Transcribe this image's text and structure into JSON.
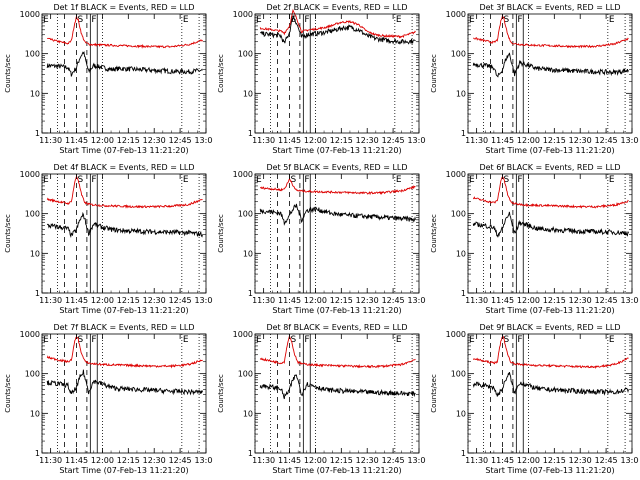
{
  "colors": {
    "events": "#000000",
    "lld": "#dd0000",
    "axes": "#000000"
  },
  "chart_data": {
    "type": "line",
    "layout": "3x3 grid",
    "ylabel": "Counts/sec",
    "yscale": "log",
    "ylim": [
      1,
      1000
    ],
    "ytick_labels": [
      "1",
      "10",
      "100",
      "1000"
    ],
    "xlim_minutes": [
      685,
      780
    ],
    "xticks": [
      {
        "label": "11:30",
        "minute": 690
      },
      {
        "label": "11:45",
        "minute": 705
      },
      {
        "label": "12:00",
        "minute": 720
      },
      {
        "label": "12:15",
        "minute": 735
      },
      {
        "label": "12:30",
        "minute": 750
      },
      {
        "label": "12:45",
        "minute": 765
      },
      {
        "label": "13:00",
        "minute": 780
      }
    ],
    "xlabel": "Start Time (07-Feb-13 11:21:20)",
    "markers": [
      {
        "label": "E",
        "minute": 685,
        "style": "dotted"
      },
      {
        "label": "",
        "minute": 694,
        "style": "dotted"
      },
      {
        "label": "",
        "minute": 698,
        "style": "dashed"
      },
      {
        "label": "S",
        "minute": 705,
        "style": "dashed"
      },
      {
        "label": "",
        "minute": 711,
        "style": "dashed"
      },
      {
        "label": "F",
        "minute": 713,
        "style": "solid"
      },
      {
        "label": "",
        "minute": 717,
        "style": "solid"
      },
      {
        "label": "",
        "minute": 720,
        "style": "dotted"
      },
      {
        "label": "E",
        "minute": 766,
        "style": "dotted"
      },
      {
        "label": "",
        "minute": 776,
        "style": "dotted"
      }
    ],
    "panels": [
      {
        "title": "Det 1f BLACK = Events, RED = LLD",
        "series": [
          {
            "name": "Events",
            "color": "#000000",
            "x": [
              688,
              695,
              700,
              702,
              705,
              707,
              709,
              712,
              715,
              720,
              725,
              730,
              740,
              750,
              760,
              770,
              778
            ],
            "y": [
              50,
              48,
              45,
              30,
              45,
              80,
              110,
              35,
              50,
              45,
              40,
              42,
              40,
              38,
              36,
              35,
              38
            ]
          },
          {
            "name": "LLD",
            "color": "#dd0000",
            "x": [
              688,
              695,
              700,
              702,
              704,
              705,
              706,
              708,
              710,
              713,
              720,
              730,
              740,
              750,
              760,
              770,
              778
            ],
            "y": [
              240,
              200,
              180,
              210,
              600,
              850,
              700,
              300,
              190,
              170,
              165,
              160,
              155,
              150,
              150,
              170,
              220
            ]
          }
        ]
      },
      {
        "title": "Det 2f BLACK = Events, RED = LLD",
        "series": [
          {
            "name": "Events",
            "color": "#000000",
            "x": [
              688,
              695,
              700,
              702,
              705,
              707,
              709,
              712,
              715,
              720,
              725,
              730,
              735,
              740,
              745,
              750,
              755,
              760,
              770,
              778
            ],
            "y": [
              320,
              300,
              280,
              180,
              350,
              900,
              600,
              260,
              300,
              320,
              340,
              380,
              440,
              460,
              400,
              280,
              240,
              220,
              200,
              210
            ]
          },
          {
            "name": "LLD",
            "color": "#dd0000",
            "x": [
              688,
              695,
              700,
              702,
              705,
              707,
              709,
              712,
              715,
              720,
              725,
              730,
              735,
              740,
              745,
              750,
              755,
              760,
              770,
              778
            ],
            "y": [
              440,
              400,
              370,
              330,
              500,
              1200,
              800,
              360,
              390,
              420,
              450,
              520,
              620,
              640,
              540,
              360,
              300,
              280,
              270,
              350
            ]
          }
        ]
      },
      {
        "title": "Det 3f BLACK = Events, RED = LLD",
        "series": [
          {
            "name": "Events",
            "color": "#000000",
            "x": [
              688,
              695,
              700,
              702,
              705,
              707,
              709,
              712,
              715,
              720,
              725,
              730,
              740,
              750,
              760,
              770,
              778
            ],
            "y": [
              55,
              50,
              45,
              25,
              40,
              75,
              100,
              30,
              60,
              50,
              42,
              40,
              38,
              36,
              35,
              34,
              38
            ]
          },
          {
            "name": "LLD",
            "color": "#dd0000",
            "x": [
              688,
              695,
              700,
              702,
              704,
              705,
              706,
              708,
              710,
              713,
              720,
              730,
              740,
              750,
              760,
              770,
              778
            ],
            "y": [
              250,
              210,
              190,
              220,
              650,
              900,
              720,
              300,
              190,
              175,
              165,
              160,
              155,
              150,
              155,
              175,
              240
            ]
          }
        ]
      },
      {
        "title": "Det 4f BLACK = Events, RED = LLD",
        "series": [
          {
            "name": "Events",
            "color": "#000000",
            "x": [
              688,
              695,
              700,
              702,
              705,
              707,
              709,
              712,
              715,
              720,
              725,
              730,
              740,
              750,
              760,
              770,
              778
            ],
            "y": [
              50,
              46,
              42,
              28,
              40,
              70,
              95,
              32,
              55,
              45,
              40,
              38,
              36,
              35,
              34,
              33,
              30
            ]
          },
          {
            "name": "LLD",
            "color": "#dd0000",
            "x": [
              688,
              695,
              700,
              702,
              704,
              705,
              706,
              708,
              710,
              713,
              720,
              730,
              740,
              750,
              760,
              770,
              778
            ],
            "y": [
              230,
              200,
              180,
              200,
              620,
              880,
              700,
              290,
              185,
              170,
              160,
              155,
              150,
              150,
              155,
              170,
              230
            ]
          }
        ]
      },
      {
        "title": "Det 5f BLACK = Events, RED = LLD",
        "series": [
          {
            "name": "Events",
            "color": "#000000",
            "x": [
              688,
              695,
              700,
              702,
              705,
              707,
              709,
              712,
              715,
              720,
              725,
              730,
              740,
              750,
              760,
              770,
              778
            ],
            "y": [
              120,
              110,
              100,
              60,
              90,
              130,
              160,
              70,
              120,
              130,
              115,
              100,
              90,
              85,
              80,
              75,
              70
            ]
          },
          {
            "name": "LLD",
            "color": "#dd0000",
            "x": [
              688,
              695,
              700,
              702,
              704,
              705,
              706,
              708,
              710,
              713,
              720,
              730,
              740,
              750,
              760,
              770,
              778
            ],
            "y": [
              450,
              420,
              400,
              420,
              600,
              750,
              650,
              420,
              380,
              370,
              360,
              350,
              340,
              330,
              340,
              380,
              480
            ]
          }
        ]
      },
      {
        "title": "Det 6f BLACK = Events, RED = LLD",
        "series": [
          {
            "name": "Events",
            "color": "#000000",
            "x": [
              688,
              695,
              700,
              702,
              705,
              707,
              709,
              712,
              715,
              720,
              725,
              730,
              740,
              750,
              760,
              770,
              778
            ],
            "y": [
              55,
              50,
              45,
              28,
              42,
              75,
              100,
              32,
              60,
              50,
              42,
              40,
              38,
              36,
              35,
              34,
              32
            ]
          },
          {
            "name": "LLD",
            "color": "#dd0000",
            "x": [
              688,
              695,
              700,
              702,
              704,
              705,
              706,
              708,
              710,
              713,
              720,
              730,
              740,
              750,
              760,
              770,
              778
            ],
            "y": [
              250,
              210,
              190,
              210,
              650,
              900,
              700,
              300,
              190,
              175,
              165,
              160,
              155,
              150,
              150,
              165,
              210
            ]
          }
        ]
      },
      {
        "title": "Det 7f BLACK = Events, RED = LLD",
        "series": [
          {
            "name": "Events",
            "color": "#000000",
            "x": [
              688,
              695,
              700,
              702,
              705,
              707,
              709,
              712,
              715,
              720,
              725,
              730,
              740,
              750,
              760,
              770,
              778
            ],
            "y": [
              60,
              55,
              50,
              30,
              45,
              80,
              110,
              35,
              65,
              55,
              45,
              42,
              40,
              38,
              36,
              35,
              34
            ]
          },
          {
            "name": "LLD",
            "color": "#dd0000",
            "x": [
              688,
              695,
              700,
              702,
              704,
              705,
              706,
              708,
              710,
              713,
              720,
              730,
              740,
              750,
              760,
              770,
              778
            ],
            "y": [
              260,
              220,
              200,
              220,
              650,
              900,
              720,
              310,
              200,
              180,
              170,
              165,
              160,
              155,
              155,
              170,
              220
            ]
          }
        ]
      },
      {
        "title": "Det 8f BLACK = Events, RED = LLD",
        "series": [
          {
            "name": "Events",
            "color": "#000000",
            "x": [
              688,
              695,
              700,
              702,
              705,
              707,
              709,
              712,
              715,
              720,
              725,
              730,
              740,
              750,
              760,
              770,
              778
            ],
            "y": [
              50,
              46,
              42,
              25,
              40,
              70,
              95,
              30,
              55,
              48,
              40,
              38,
              36,
              34,
              33,
              32,
              31
            ]
          },
          {
            "name": "LLD",
            "color": "#dd0000",
            "x": [
              688,
              695,
              700,
              702,
              704,
              705,
              706,
              708,
              710,
              713,
              720,
              730,
              740,
              750,
              760,
              770,
              778
            ],
            "y": [
              240,
              205,
              185,
              200,
              640,
              880,
              700,
              300,
              190,
              175,
              165,
              160,
              155,
              150,
              155,
              170,
              230
            ]
          }
        ]
      },
      {
        "title": "Det 9f BLACK = Events, RED = LLD",
        "series": [
          {
            "name": "Events",
            "color": "#000000",
            "x": [
              688,
              695,
              700,
              702,
              705,
              707,
              709,
              712,
              715,
              720,
              725,
              730,
              740,
              750,
              760,
              770,
              778
            ],
            "y": [
              55,
              50,
              45,
              28,
              42,
              75,
              100,
              32,
              60,
              50,
              42,
              40,
              38,
              36,
              35,
              34,
              40
            ]
          },
          {
            "name": "LLD",
            "color": "#dd0000",
            "x": [
              688,
              695,
              700,
              702,
              704,
              705,
              706,
              708,
              710,
              713,
              720,
              730,
              740,
              750,
              760,
              770,
              778
            ],
            "y": [
              240,
              205,
              185,
              205,
              650,
              900,
              700,
              300,
              190,
              175,
              165,
              160,
              155,
              150,
              150,
              170,
              250
            ]
          }
        ]
      }
    ]
  }
}
